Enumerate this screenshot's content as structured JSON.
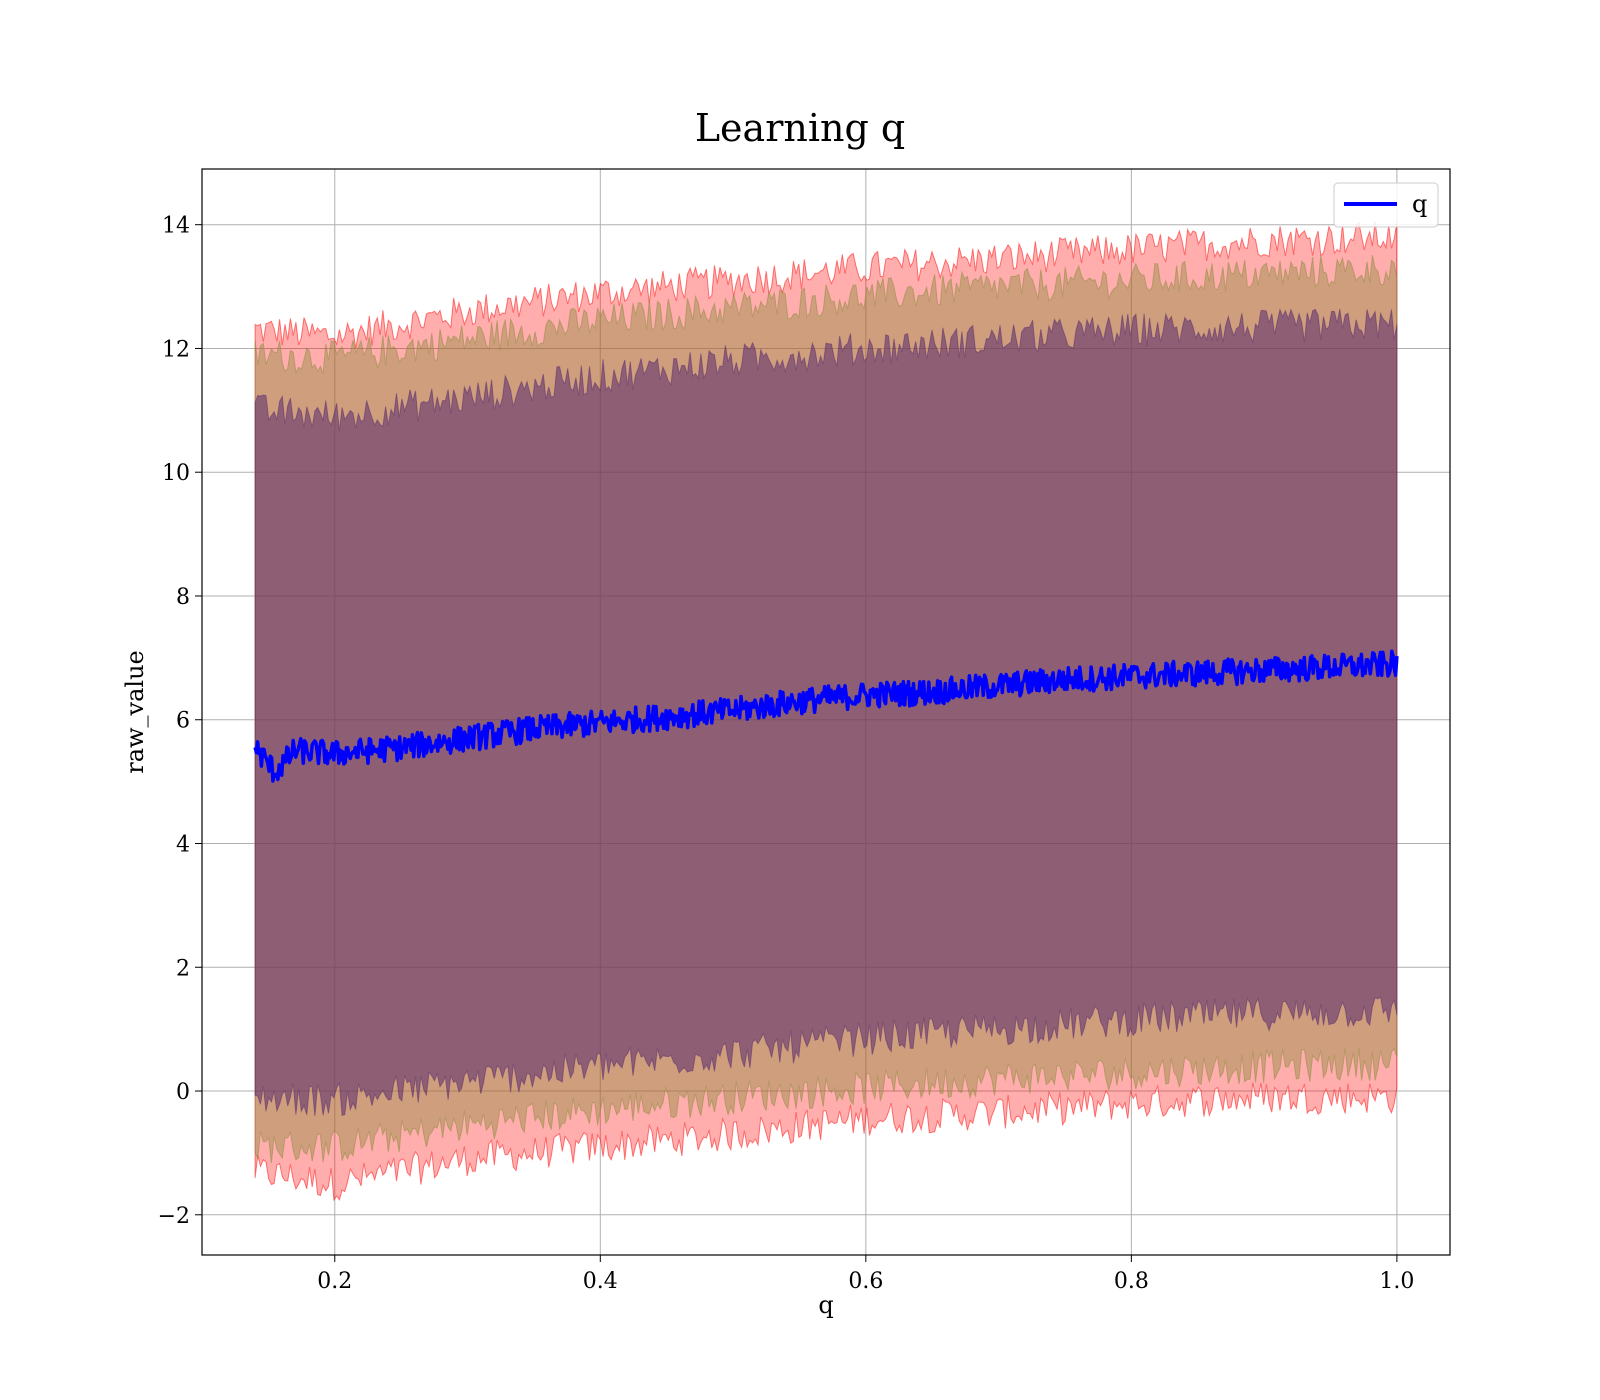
{
  "chart_data": {
    "type": "line",
    "title": "Learning q",
    "xlabel": "q",
    "ylabel": "raw_value",
    "xlim": [
      0.1,
      1.04
    ],
    "ylim": [
      -2.65,
      14.9
    ],
    "xticks": [
      0.2,
      0.4,
      0.6,
      0.8,
      1.0
    ],
    "xtick_labels": [
      "0.2",
      "0.4",
      "0.6",
      "0.8",
      "1.0"
    ],
    "yticks": [
      -2,
      0,
      2,
      4,
      6,
      8,
      10,
      12,
      14
    ],
    "ytick_labels": [
      "−2",
      "0",
      "2",
      "4",
      "6",
      "8",
      "10",
      "12",
      "14"
    ],
    "grid": true,
    "legend_position": "top-right",
    "colors": {
      "line": "#0000ff",
      "band_outer": "#ff0000",
      "band_mid": "#8c8c3c",
      "band_inner": "#5a2a6e",
      "grid": "#b0b0b0"
    },
    "series": [
      {
        "name": "q",
        "x": [
          0.14,
          0.155,
          0.17,
          0.2,
          0.25,
          0.3,
          0.35,
          0.4,
          0.45,
          0.5,
          0.55,
          0.6,
          0.65,
          0.7,
          0.75,
          0.8,
          0.85,
          0.9,
          0.95,
          1.0
        ],
        "y": [
          5.55,
          5.15,
          5.5,
          5.45,
          5.55,
          5.7,
          5.85,
          5.95,
          6.05,
          6.15,
          6.3,
          6.4,
          6.45,
          6.55,
          6.65,
          6.7,
          6.75,
          6.8,
          6.85,
          6.9
        ]
      }
    ],
    "bands": [
      {
        "level": "outer",
        "x": [
          0.14,
          0.2,
          0.3,
          0.4,
          0.5,
          0.6,
          0.7,
          0.8,
          0.9,
          1.0
        ],
        "upper": [
          12.3,
          12.2,
          12.6,
          12.9,
          13.1,
          13.3,
          13.45,
          13.6,
          13.75,
          13.8
        ],
        "lower": [
          -1.3,
          -1.5,
          -1.1,
          -0.9,
          -0.7,
          -0.45,
          -0.35,
          -0.2,
          -0.1,
          -0.1
        ]
      },
      {
        "level": "mid",
        "x": [
          0.14,
          0.2,
          0.3,
          0.4,
          0.5,
          0.6,
          0.7,
          0.8,
          0.9,
          1.0
        ],
        "upper": [
          11.9,
          11.85,
          12.15,
          12.45,
          12.65,
          12.85,
          13.0,
          13.1,
          13.2,
          13.3
        ],
        "lower": [
          -0.9,
          -0.9,
          -0.55,
          -0.3,
          -0.1,
          0.05,
          0.2,
          0.3,
          0.4,
          0.45
        ]
      },
      {
        "level": "inner",
        "x": [
          0.14,
          0.2,
          0.3,
          0.4,
          0.5,
          0.6,
          0.7,
          0.8,
          0.9,
          1.0
        ],
        "upper": [
          11.0,
          10.9,
          11.2,
          11.55,
          11.8,
          12.0,
          12.15,
          12.3,
          12.35,
          12.4
        ],
        "lower": [
          -0.1,
          -0.15,
          0.15,
          0.4,
          0.6,
          0.85,
          1.0,
          1.15,
          1.25,
          1.3
        ]
      }
    ]
  }
}
